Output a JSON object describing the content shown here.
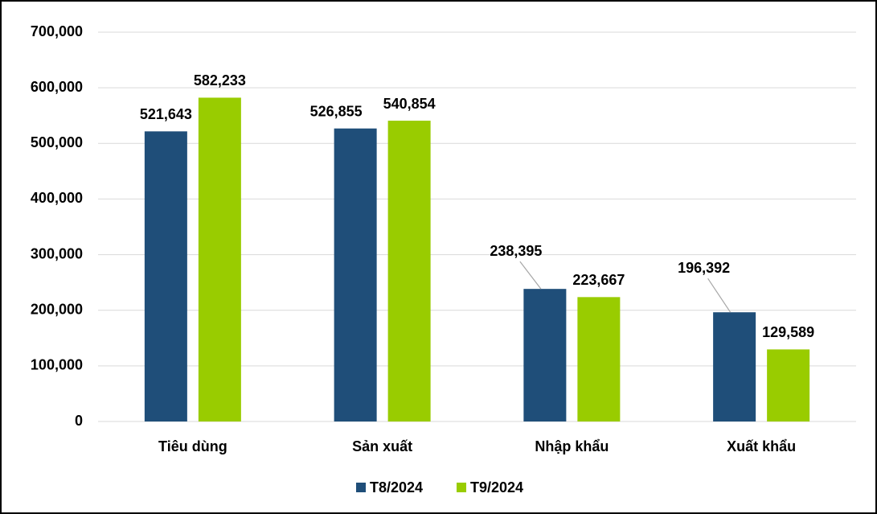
{
  "chart_data": {
    "type": "bar",
    "categories": [
      "Tiêu dùng",
      "Sản xuất",
      "Nhập khẩu",
      "Xuất khẩu"
    ],
    "series": [
      {
        "name": "T8/2024",
        "color": "#1f4e79",
        "values": [
          521643,
          526855,
          238395,
          196392
        ],
        "value_labels": [
          "521,643",
          "526,855",
          "238,395",
          "196,392"
        ]
      },
      {
        "name": "T9/2024",
        "color": "#99cc00",
        "values": [
          582233,
          540854,
          223667,
          129589
        ],
        "value_labels": [
          "582,233",
          "540,854",
          "223,667",
          "129,589"
        ]
      }
    ],
    "ylim": [
      0,
      700000
    ],
    "yticks": [
      0,
      {
        "value": 100000,
        "label": "100,000"
      },
      {
        "value": 200000,
        "label": "200,000"
      },
      {
        "value": 300000,
        "label": "300,000"
      },
      {
        "value": 400000,
        "label": "400,000"
      },
      {
        "value": 500000,
        "label": "500,000"
      },
      {
        "value": 600000,
        "label": "600,000"
      },
      {
        "value": 700000,
        "label": "700,000"
      }
    ],
    "grid": true,
    "legend": "bottom"
  }
}
